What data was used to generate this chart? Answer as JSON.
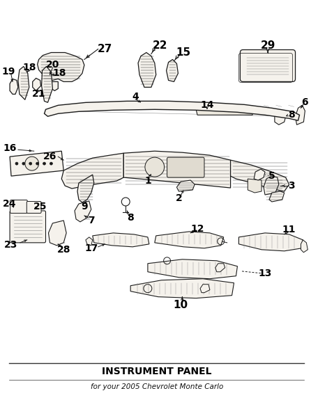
{
  "title": "INSTRUMENT PANEL",
  "subtitle": "for your 2005 Chevrolet Monte Carlo",
  "bg_color": "#ffffff",
  "ec": "#1a1a1a",
  "fc": "#f5f2ec",
  "fc2": "#ece8de",
  "lw_main": 0.9,
  "lw_detail": 0.5,
  "lw_hatch": 0.3,
  "fig_width": 4.46,
  "fig_height": 5.75,
  "dpi": 100
}
